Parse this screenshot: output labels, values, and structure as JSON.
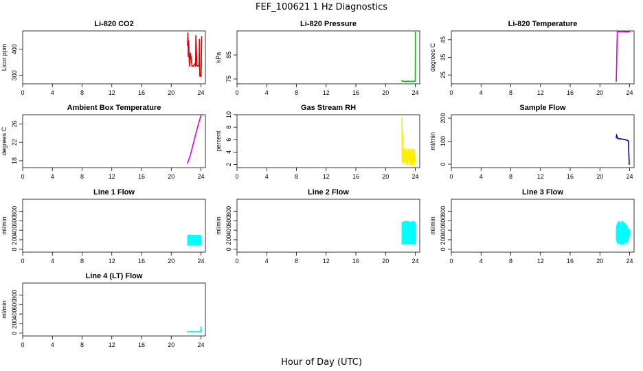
{
  "figure": {
    "title": "FEF_100621  1 Hz Diagnostics",
    "xlabel": "Hour of Day (UTC)"
  },
  "chart_data": [
    {
      "type": "line",
      "title": "Li-820 CO2",
      "ylabel": "Licor ppm",
      "color": "#dd0000",
      "xticks": [
        "0",
        "4",
        "8",
        "12",
        "16",
        "20",
        "24"
      ],
      "xlim": [
        0,
        24.6
      ],
      "ylim": [
        268,
        470
      ],
      "yticks": [
        "300",
        "400"
      ],
      "ytick_values": [
        300,
        400
      ],
      "series": [
        {
          "x": [
            22.2,
            22.25,
            22.3,
            22.35,
            22.45,
            22.6,
            22.8,
            23.0,
            23.2,
            23.28,
            23.32,
            23.45,
            23.6,
            23.75,
            23.8,
            23.85,
            23.95,
            24.0,
            24.05,
            24.1
          ],
          "y": [
            415,
            462,
            372,
            432,
            336,
            385,
            336,
            336,
            345,
            336,
            452,
            338,
            336,
            336,
            437,
            298,
            305,
            295,
            340,
            448
          ]
        }
      ]
    },
    {
      "type": "line",
      "title": "Li-820 Pressure",
      "ylabel": "kPa",
      "color": "#00bb00",
      "xticks": [
        "0",
        "4",
        "8",
        "12",
        "16",
        "20",
        "24"
      ],
      "xlim": [
        0,
        24.6
      ],
      "ylim": [
        73,
        95
      ],
      "yticks": [
        "75",
        "85"
      ],
      "ytick_values": [
        75,
        85
      ],
      "series": [
        {
          "x": [
            22.2,
            22.6,
            23.0,
            23.5,
            23.9,
            24.0,
            24.02
          ],
          "y": [
            74.2,
            74.0,
            74.1,
            74.0,
            74.1,
            74.2,
            94.5
          ]
        }
      ]
    },
    {
      "type": "line",
      "title": "Li-820 Temperature",
      "ylabel": "degrees C",
      "color": "#dd00dd",
      "xticks": [
        "0",
        "4",
        "8",
        "12",
        "16",
        "20",
        "24"
      ],
      "xlim": [
        0,
        24.6
      ],
      "ylim": [
        20,
        50
      ],
      "yticks": [
        "25",
        "35",
        "45"
      ],
      "ytick_values": [
        25,
        35,
        45
      ],
      "series": [
        {
          "x": [
            22.2,
            22.25,
            22.3,
            22.35,
            22.5,
            23.0,
            23.5,
            24.0
          ],
          "y": [
            21.5,
            30,
            42,
            49.5,
            49.6,
            49.6,
            49.5,
            49.6
          ]
        }
      ]
    },
    {
      "type": "line",
      "title": "Ambient Box Temperature",
      "ylabel": "degrees C",
      "color": "#dd00dd",
      "xticks": [
        "0",
        "4",
        "8",
        "12",
        "16",
        "20",
        "24"
      ],
      "xlim": [
        0,
        24.6
      ],
      "ylim": [
        16.5,
        28
      ],
      "yticks": [
        "18",
        "22",
        "26"
      ],
      "ytick_values": [
        18,
        22,
        26
      ],
      "series": [
        {
          "x": [
            22.2,
            22.5,
            22.8,
            23.1,
            23.4,
            23.7,
            24.0
          ],
          "y": [
            17.5,
            18.8,
            20.6,
            22.5,
            24.4,
            26.2,
            27.8
          ]
        }
      ]
    },
    {
      "type": "line",
      "title": "Gas Stream RH",
      "ylabel": "percent",
      "color": "#ffee00",
      "xticks": [
        "0",
        "4",
        "8",
        "12",
        "16",
        "20",
        "24"
      ],
      "xlim": [
        0,
        24.6
      ],
      "ylim": [
        1.5,
        10
      ],
      "yticks": [
        "2",
        "4",
        "6",
        "8",
        "10"
      ],
      "ytick_values": [
        2,
        4,
        6,
        8,
        10
      ],
      "series": [
        {
          "x": [
            22.2,
            22.25,
            22.3,
            22.4,
            22.5,
            22.6,
            22.7,
            22.8,
            22.9,
            23.0,
            23.1,
            23.2,
            23.3,
            23.4,
            23.5,
            23.6,
            23.7,
            23.8,
            23.9,
            24.0
          ],
          "y": [
            9.5,
            2.3,
            7.0,
            2.2,
            4.6,
            2.2,
            4.4,
            1.9,
            4.5,
            2.0,
            4.4,
            2.1,
            4.5,
            1.8,
            4.4,
            2.0,
            4.5,
            1.9,
            4.4,
            2.2
          ]
        }
      ]
    },
    {
      "type": "line",
      "title": "Sample Flow",
      "ylabel": "ml/min",
      "color": "#0000cc",
      "xticks": [
        "0",
        "4",
        "8",
        "12",
        "16",
        "20",
        "24"
      ],
      "xlim": [
        0,
        24.6
      ],
      "ylim": [
        -15,
        215
      ],
      "yticks": [
        "0",
        "100",
        "200"
      ],
      "ytick_values": [
        0,
        100,
        200
      ],
      "series": [
        {
          "x": [
            22.2,
            22.25,
            22.4,
            22.8,
            23.2,
            23.6,
            23.85,
            23.9,
            23.95
          ],
          "y": [
            115,
            125,
            112,
            110,
            108,
            105,
            100,
            40,
            0
          ]
        }
      ]
    },
    {
      "type": "area",
      "title": "Line 1 Flow",
      "ylabel": "ml/min",
      "color": "#00ffff",
      "xticks": [
        "0",
        "4",
        "8",
        "12",
        "16",
        "20",
        "24"
      ],
      "xlim": [
        0,
        24.6
      ],
      "ylim": [
        -60,
        1050
      ],
      "yticks": [
        "0",
        "200",
        "400",
        "600",
        "800"
      ],
      "ytick_values": [
        0,
        200,
        400,
        600,
        800
      ],
      "series": [
        {
          "x": [
            22.2,
            22.5,
            22.8,
            23.1,
            23.4,
            23.7,
            24.0
          ],
          "low": [
            80,
            90,
            85,
            95,
            90,
            85,
            90
          ],
          "high": [
            290,
            300,
            295,
            300,
            290,
            300,
            285
          ]
        }
      ]
    },
    {
      "type": "area",
      "title": "Line 2 Flow",
      "ylabel": "ml/min",
      "color": "#00ffff",
      "xticks": [
        "0",
        "4",
        "8",
        "12",
        "16",
        "20",
        "24"
      ],
      "xlim": [
        0,
        24.6
      ],
      "ylim": [
        -60,
        1050
      ],
      "yticks": [
        "0",
        "200",
        "400",
        "600",
        "800"
      ],
      "ytick_values": [
        0,
        200,
        400,
        600,
        800
      ],
      "series": [
        {
          "x": [
            22.2,
            22.5,
            22.8,
            23.1,
            23.4,
            23.7,
            24.0
          ],
          "low": [
            110,
            105,
            120,
            110,
            115,
            100,
            110
          ],
          "high": [
            560,
            580,
            590,
            580,
            570,
            585,
            570
          ]
        }
      ]
    },
    {
      "type": "area",
      "title": "Line 3 Flow",
      "ylabel": "ml/min",
      "color": "#00ffff",
      "xticks": [
        "0",
        "4",
        "8",
        "12",
        "16",
        "20",
        "24"
      ],
      "xlim": [
        0,
        24.6
      ],
      "ylim": [
        -60,
        1050
      ],
      "yticks": [
        "0",
        "200",
        "400",
        "600",
        "800"
      ],
      "ytick_values": [
        0,
        200,
        400,
        600,
        800
      ],
      "series": [
        {
          "x": [
            22.2,
            22.4,
            22.6,
            22.8,
            23.0,
            23.2,
            23.4,
            23.6,
            23.8,
            24.0
          ],
          "low": [
            200,
            110,
            150,
            90,
            130,
            100,
            160,
            120,
            180,
            300
          ],
          "high": [
            480,
            560,
            590,
            520,
            600,
            560,
            540,
            500,
            420,
            420
          ]
        }
      ]
    },
    {
      "type": "line",
      "title": "Line 4 (LT) Flow",
      "ylabel": "ml/min",
      "color": "#00ffff",
      "xticks": [
        "0",
        "4",
        "8",
        "12",
        "16",
        "20",
        "24"
      ],
      "xlim": [
        0,
        24.6
      ],
      "ylim": [
        -60,
        1050
      ],
      "yticks": [
        "0",
        "200",
        "400",
        "600",
        "800"
      ],
      "ytick_values": [
        0,
        200,
        400,
        600,
        800
      ],
      "series": [
        {
          "x": [
            22.2,
            22.6,
            23.0,
            23.4,
            23.8,
            23.95,
            24.0,
            24.05
          ],
          "y": [
            30,
            30,
            28,
            30,
            32,
            30,
            130,
            40
          ]
        }
      ]
    }
  ]
}
